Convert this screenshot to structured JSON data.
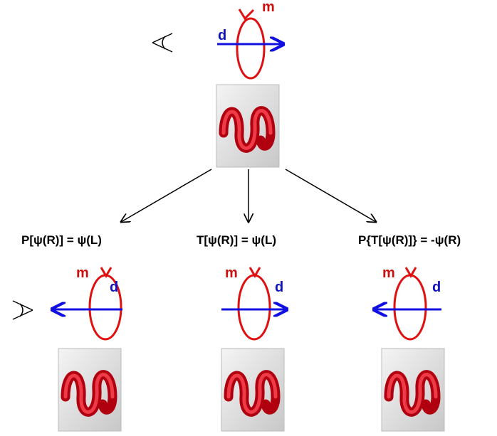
{
  "top": {
    "m_label": "m",
    "d_label": "d"
  },
  "branches": [
    {
      "equation": "P[ψ(R)] = ψ(L)",
      "m_label": "m",
      "d_label": "d"
    },
    {
      "equation": "T[ψ(R)] = ψ(L)",
      "m_label": "m",
      "d_label": "d"
    },
    {
      "equation": "P{T[ψ(R)]} = -ψ(R)",
      "m_label": "m",
      "d_label": "d"
    }
  ]
}
